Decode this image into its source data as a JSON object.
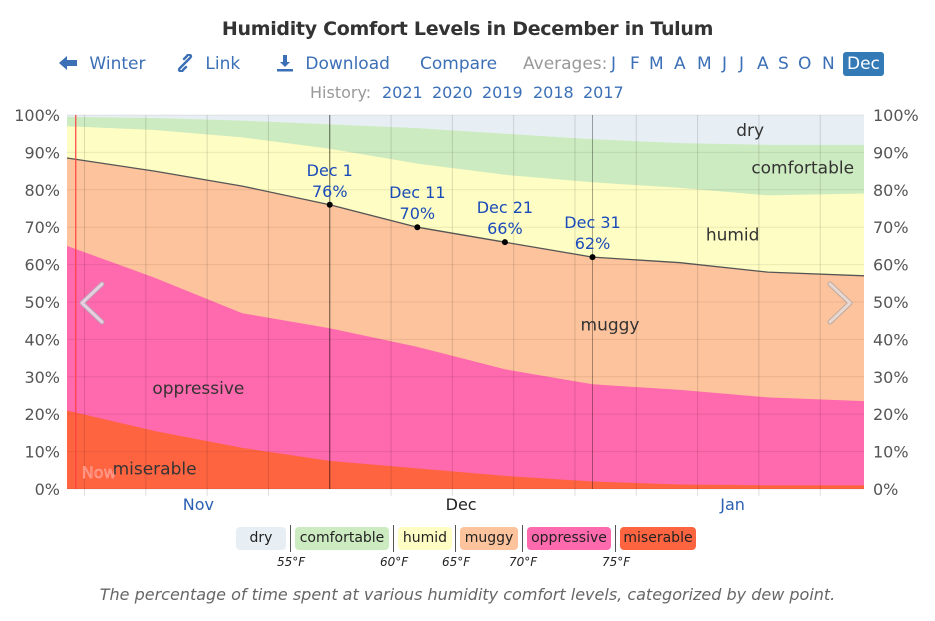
{
  "title": "Humidity Comfort Levels in December in Tulum",
  "nav": {
    "back_label": "Winter",
    "link_label": "Link",
    "download_label": "Download",
    "compare_label": "Compare",
    "averages_label": "Averages:",
    "months": [
      "J",
      "F",
      "M",
      "A",
      "M",
      "J",
      "J",
      "A",
      "S",
      "O",
      "N",
      "Dec"
    ],
    "active_month": "Dec"
  },
  "history": {
    "label": "History:",
    "years": [
      "2021",
      "2020",
      "2019",
      "2018",
      "2017"
    ]
  },
  "colors": {
    "dry": "#e7eff4",
    "comfortable": "#cdebc0",
    "humid": "#fefdc3",
    "muggy": "#fdc39c",
    "oppressive": "#ff69ad",
    "miserable": "#ff6441",
    "annotation": "#1a4bba",
    "now": "#ff4040",
    "month_label": "#2a5fb2"
  },
  "chart_data": {
    "type": "area",
    "stacked": true,
    "title": "Humidity Comfort Levels in December in Tulum",
    "xlabel": "",
    "ylabel": "",
    "ylim": [
      0,
      100
    ],
    "y_ticks": [
      "0%",
      "10%",
      "20%",
      "30%",
      "40%",
      "50%",
      "60%",
      "70%",
      "80%",
      "90%",
      "100%"
    ],
    "x_day_offsets_from_dec1": [
      -30,
      -20,
      -10,
      0,
      10,
      20,
      30,
      40,
      50,
      61
    ],
    "x_range_days": [
      -30,
      61
    ],
    "month_labels": [
      {
        "label": "Nov",
        "day": -15,
        "current": false
      },
      {
        "label": "Dec",
        "day": 15,
        "current": true
      },
      {
        "label": "Jan",
        "day": 46,
        "current": false
      }
    ],
    "series": [
      {
        "name": "miserable",
        "cumulative_top": [
          21,
          15.5,
          11,
          7.5,
          5.5,
          3.5,
          2,
          1.2,
          1,
          1
        ]
      },
      {
        "name": "oppressive",
        "cumulative_top": [
          65,
          56.5,
          47,
          43,
          38,
          32,
          28,
          26.5,
          24.5,
          23.5
        ]
      },
      {
        "name": "muggy",
        "cumulative_top": [
          88.5,
          85,
          81,
          76,
          70,
          66,
          62,
          60.5,
          58,
          57
        ]
      },
      {
        "name": "humid",
        "cumulative_top": [
          97,
          96,
          94,
          91,
          87,
          84,
          82,
          80.5,
          78.5,
          79
        ]
      },
      {
        "name": "comfortable",
        "cumulative_top": [
          99.5,
          99.2,
          98.5,
          97.5,
          96.5,
          95,
          93.5,
          92.5,
          92,
          92
        ]
      },
      {
        "name": "dry",
        "cumulative_top": [
          100,
          100,
          100,
          100,
          100,
          100,
          100,
          100,
          100,
          100
        ]
      }
    ],
    "band_labels": [
      {
        "name": "dry",
        "day": 48,
        "pct": 96
      },
      {
        "name": "comfortable",
        "day": 54,
        "pct": 86
      },
      {
        "name": "humid",
        "day": 46,
        "pct": 68
      },
      {
        "name": "muggy",
        "day": 32,
        "pct": 44
      },
      {
        "name": "oppressive",
        "day": -15,
        "pct": 27
      },
      {
        "name": "miserable",
        "day": -20,
        "pct": 5.5
      }
    ],
    "annotations": [
      {
        "label": "Dec 1",
        "value": "76%",
        "day": 0,
        "pct": 76
      },
      {
        "label": "Dec 11",
        "value": "70%",
        "day": 10,
        "pct": 70
      },
      {
        "label": "Dec 21",
        "value": "66%",
        "day": 20,
        "pct": 66
      },
      {
        "label": "Dec 31",
        "value": "62%",
        "day": 30,
        "pct": 62
      }
    ],
    "now_label": "Now",
    "now_day": -29,
    "grid": true
  },
  "legend": {
    "items": [
      "dry",
      "comfortable",
      "humid",
      "muggy",
      "oppressive",
      "miserable"
    ],
    "thresholds": [
      "55°F",
      "60°F",
      "65°F",
      "70°F",
      "75°F"
    ]
  },
  "caption": "The percentage of time spent at various humidity comfort levels, categorized by dew point."
}
